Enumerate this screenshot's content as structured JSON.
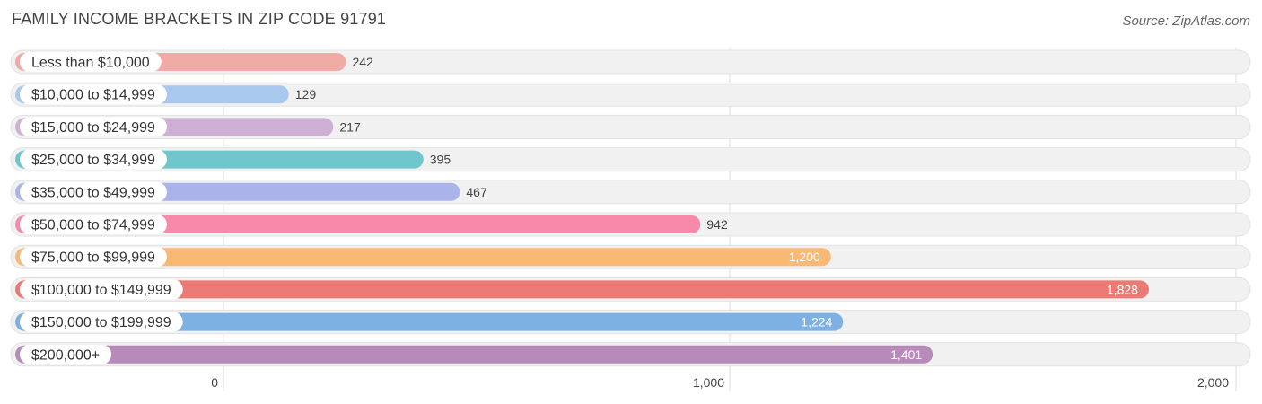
{
  "chart_data": {
    "type": "bar",
    "orientation": "horizontal",
    "title": "FAMILY INCOME BRACKETS IN ZIP CODE 91791",
    "source": "Source: ZipAtlas.com",
    "categories": [
      "Less than $10,000",
      "$10,000 to $14,999",
      "$15,000 to $24,999",
      "$25,000 to $34,999",
      "$35,000 to $49,999",
      "$50,000 to $74,999",
      "$75,000 to $99,999",
      "$100,000 to $149,999",
      "$150,000 to $199,999",
      "$200,000+"
    ],
    "values": [
      242,
      129,
      217,
      395,
      467,
      942,
      1200,
      1828,
      1224,
      1401
    ],
    "value_labels": [
      "242",
      "129",
      "217",
      "395",
      "467",
      "942",
      "1,200",
      "1,828",
      "1,224",
      "1,401"
    ],
    "colors": [
      "#f2aaa6",
      "#a9c8ee",
      "#cdb0d4",
      "#6fc6cc",
      "#aab4ea",
      "#f78aaa",
      "#f9b874",
      "#ea7a73",
      "#7eb1e3",
      "#b88ab9"
    ],
    "xlim": [
      0,
      2000
    ],
    "xticks": [
      0,
      1000,
      2000
    ],
    "xtick_labels": [
      "0",
      "1,000",
      "2,000"
    ],
    "grid": true
  }
}
